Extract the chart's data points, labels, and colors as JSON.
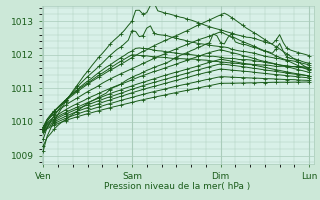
{
  "bg_color": "#cce8d8",
  "plot_bg_color": "#d8f0e8",
  "grid_color": "#aaccbb",
  "line_color": "#1a5c1a",
  "xlabel": "Pression niveau de la mer( hPa )",
  "yticks": [
    1009,
    1010,
    1011,
    1012,
    1013
  ],
  "xtick_labels": [
    "Ven",
    "Sam",
    "Dim",
    "Lun"
  ],
  "xtick_positions": [
    0,
    1,
    2,
    3
  ],
  "ylim": [
    1008.75,
    1013.45
  ],
  "xlim": [
    -0.02,
    3.05
  ],
  "figsize": [
    3.2,
    2.0
  ],
  "dpi": 100,
  "series_configs": [
    [
      1009.15,
      1.15,
      1013.38,
      1011.9,
      0.07,
      10
    ],
    [
      1009.5,
      1.1,
      1012.75,
      1011.7,
      0.055,
      20
    ],
    [
      1009.75,
      1.05,
      1012.2,
      1011.65,
      0.045,
      30
    ],
    [
      1009.85,
      1.0,
      1012.0,
      1011.6,
      0.035,
      35
    ],
    [
      1009.85,
      2.05,
      1013.22,
      1011.55,
      0.04,
      40
    ],
    [
      1009.85,
      2.0,
      1012.65,
      1011.5,
      0.03,
      50
    ],
    [
      1009.82,
      2.0,
      1012.15,
      1011.45,
      0.022,
      60
    ],
    [
      1009.8,
      2.0,
      1011.9,
      1011.4,
      0.018,
      70
    ],
    [
      1009.78,
      2.0,
      1011.72,
      1011.35,
      0.015,
      80
    ],
    [
      1009.75,
      2.0,
      1011.55,
      1011.3,
      0.013,
      90
    ],
    [
      1009.72,
      2.0,
      1011.35,
      1011.25,
      0.012,
      100
    ],
    [
      1009.7,
      2.0,
      1011.15,
      1011.2,
      0.011,
      110
    ],
    [
      1009.3,
      2.0,
      1012.4,
      1011.62,
      0.09,
      120
    ]
  ]
}
